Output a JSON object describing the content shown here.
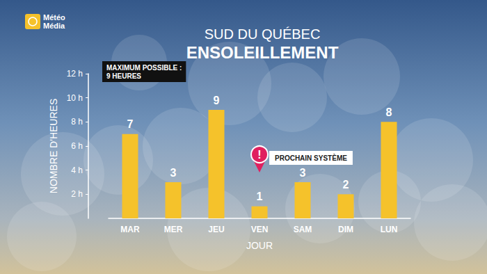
{
  "chart_data": {
    "type": "bar",
    "logo": [
      "Météo",
      "Média"
    ],
    "title": "SUD DU QUÉBEC",
    "subtitle": "ENSOLEILLEMENT",
    "note": [
      "MAXIMUM POSSIBLE :",
      "9 HEURES"
    ],
    "annotation": {
      "icon": "!",
      "text": "PROCHAIN SYSTÈME",
      "category": "VEN"
    },
    "x_label": "JOUR",
    "y_label": "NOMBRE D'HEURES",
    "categories": [
      "MAR",
      "MER",
      "JEU",
      "VEN",
      "SAM",
      "DIM",
      "LUN"
    ],
    "values": [
      7,
      3,
      9,
      1,
      3,
      2,
      8
    ],
    "color": "#f5c22b",
    "ylim": [
      0,
      12
    ],
    "yticks": [
      {
        "value": 2,
        "label": "2 h"
      },
      {
        "value": 4,
        "label": "4 h"
      },
      {
        "value": 6,
        "label": "6 h"
      },
      {
        "value": 8,
        "label": "8 h"
      },
      {
        "value": 10,
        "label": "10 h"
      },
      {
        "value": 12,
        "label": "12 h"
      }
    ],
    "grid": false,
    "data_labels": true
  }
}
